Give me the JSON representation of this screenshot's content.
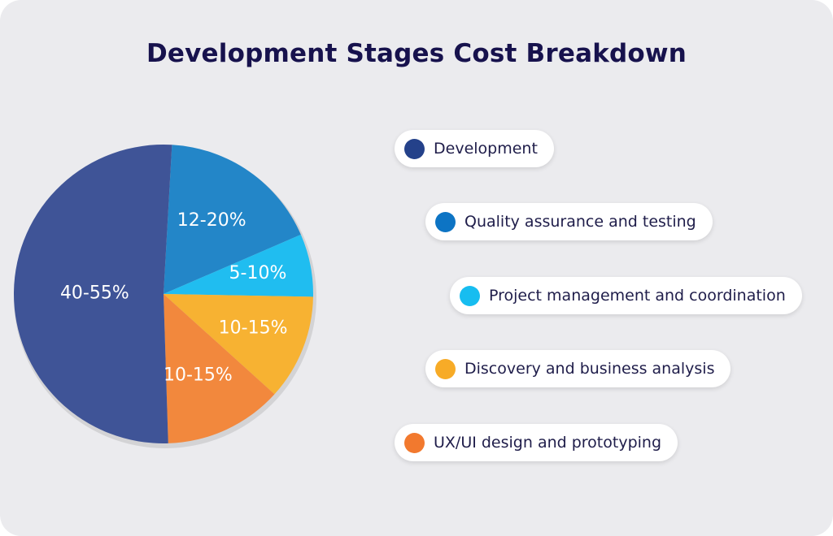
{
  "title": "Development Stages Cost Breakdown",
  "chart_data": {
    "type": "pie",
    "title": "Development Stages Cost Breakdown",
    "slices": [
      {
        "name": "Development",
        "label": "40-55%",
        "share": 0.514,
        "color": "#3f5497",
        "text_color": "#ffffff"
      },
      {
        "name": "Quality assurance and testing",
        "label": "12-20%",
        "share": 0.176,
        "color": "#2386c8",
        "text_color": "#ffffff"
      },
      {
        "name": "Project management and coordination",
        "label": "5-10%",
        "share": 0.068,
        "color": "#20bdf0",
        "text_color": "#ffffff"
      },
      {
        "name": "Discovery and business analysis",
        "label": "10-15%",
        "share": 0.114,
        "color": "#f7b232",
        "text_color": "#ffffff"
      },
      {
        "name": "UX/UI design and prototyping",
        "label": "10-15%",
        "share": 0.128,
        "color": "#f2883d",
        "text_color": "#ffffff"
      }
    ],
    "legend_position": "right"
  },
  "legend": [
    {
      "label": "Development",
      "color": "#24418a"
    },
    {
      "label": "Quality assurance and testing",
      "color": "#0d74c4"
    },
    {
      "label": "Project management and coordination",
      "color": "#17bdf0"
    },
    {
      "label": "Discovery and business analysis",
      "color": "#f7ab27"
    },
    {
      "label": "UX/UI design and prototyping",
      "color": "#f2792e"
    }
  ]
}
